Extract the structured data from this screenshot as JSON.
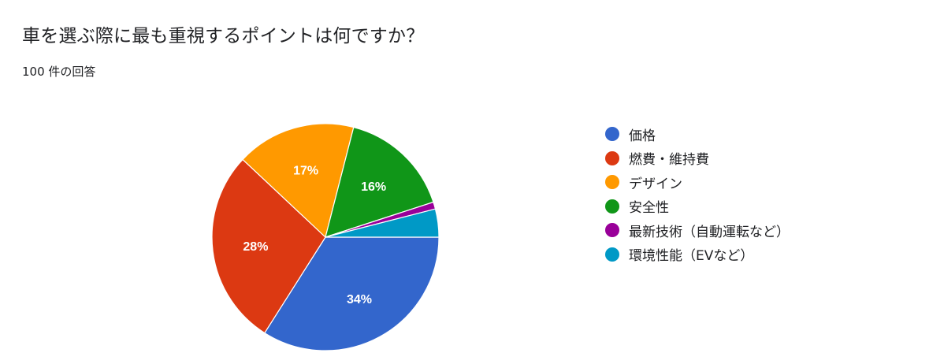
{
  "header": {
    "question": "車を選ぶ際に最も重視するポイントは何ですか？",
    "responses": "100 件の回答"
  },
  "chart_data": {
    "type": "pie",
    "title": "車を選ぶ際に最も重視するポイントは何ですか？",
    "total_responses": 100,
    "slices": [
      {
        "label": "価格",
        "value": 34,
        "display": "34%",
        "color": "#3366cc"
      },
      {
        "label": "燃費・維持費",
        "value": 28,
        "display": "28%",
        "color": "#dc3912"
      },
      {
        "label": "デザイン",
        "value": 17,
        "display": "17%",
        "color": "#ff9900"
      },
      {
        "label": "安全性",
        "value": 16,
        "display": "16%",
        "color": "#109618"
      },
      {
        "label": "最新技術（自動運転など）",
        "value": 1,
        "display": "",
        "color": "#990099"
      },
      {
        "label": "環境性能（EVなど）",
        "value": 4,
        "display": "",
        "color": "#0099c6"
      }
    ],
    "legend_position": "right"
  }
}
